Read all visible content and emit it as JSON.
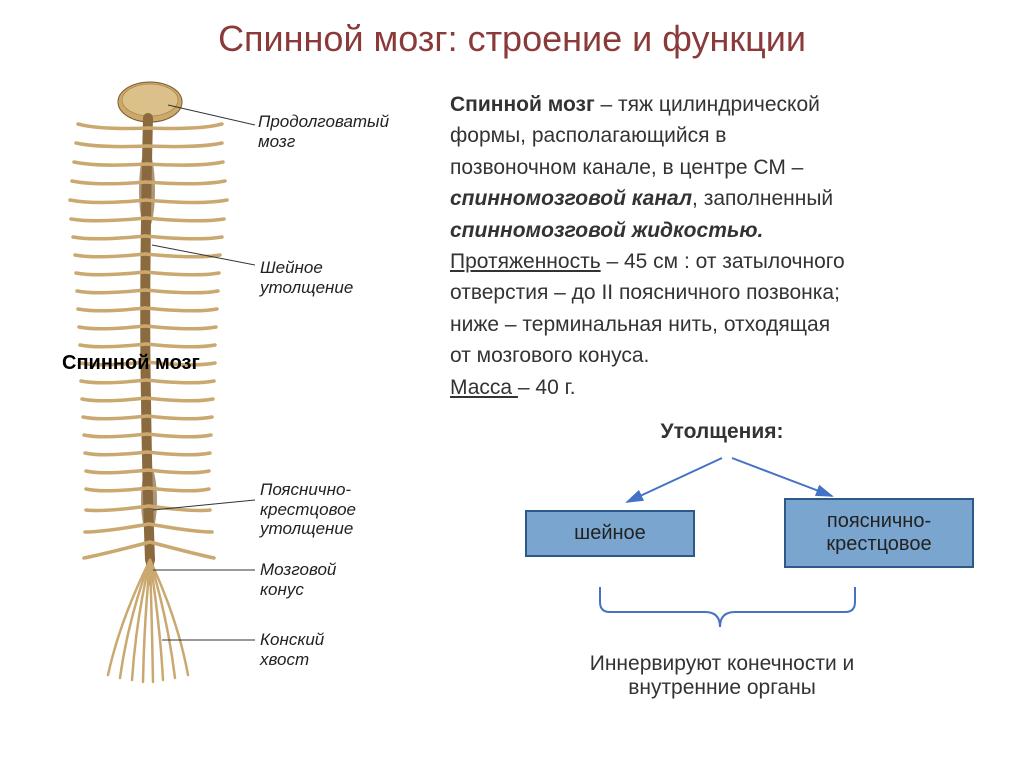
{
  "title": "Спинной мозг:  строение и функции",
  "definition": {
    "l1a": "Спинной мозг",
    "l1b": " – тяж  цилиндрической",
    "l2": "формы, располагающийся в",
    "l3": "позвоночном канале,  в центре СМ –",
    "l4a": "спинномозговой канал",
    "l4b": ", заполненный",
    "l5": "спинномозговой жидкостью.",
    "l6a": "Протяженность",
    "l6b": " – 45 см : от затылочного",
    "l7": "отверстия – до II поясничного позвонка;",
    "l8": "  ниже – терминальная нить, отходящая",
    "l9": "  от мозгового конуса.",
    "l10a": " Масса ",
    "l10b": "– 40 г."
  },
  "thicken": {
    "heading": "Утолщения",
    "left": "шейное",
    "right": "пояснично-крестцовое"
  },
  "innervate": "Иннервируют конечности и внутренние органы",
  "diagram": {
    "main_label": "Спинной мозг",
    "labels": {
      "medulla": "Продолговатый мозг",
      "cervical": "Шейное утолщение",
      "lumbar": "Пояснично-крестцовое утолщение",
      "conus": "Мозговой конус",
      "cauda": "Конский хвост"
    },
    "colors": {
      "bone": "#cba96a",
      "bone_dark": "#a8864a",
      "cord": "#7b5a35",
      "nerve": "#caa870",
      "node_blue": "#7aa5cf",
      "node_border": "#2b5a8a",
      "arrow": "#4472c4",
      "title_color": "#8b3a3a"
    }
  }
}
